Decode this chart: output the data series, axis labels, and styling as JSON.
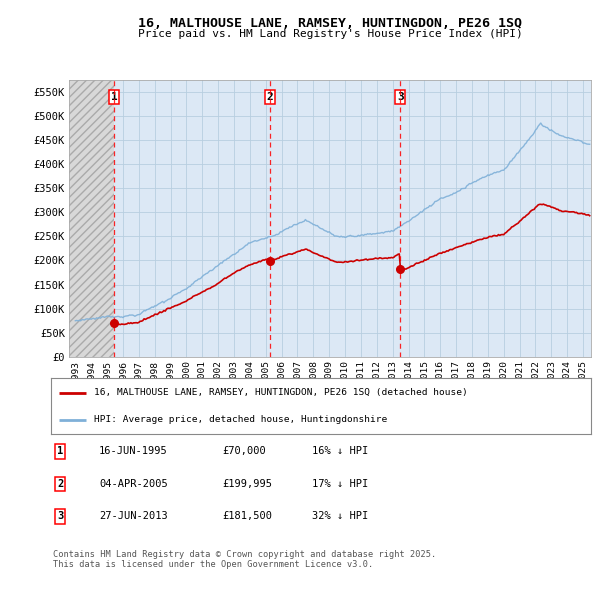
{
  "title": "16, MALTHOUSE LANE, RAMSEY, HUNTINGDON, PE26 1SQ",
  "subtitle": "Price paid vs. HM Land Registry's House Price Index (HPI)",
  "ylim": [
    0,
    575000
  ],
  "yticks": [
    0,
    50000,
    100000,
    150000,
    200000,
    250000,
    300000,
    350000,
    400000,
    450000,
    500000,
    550000
  ],
  "ytick_labels": [
    "£0",
    "£50K",
    "£100K",
    "£150K",
    "£200K",
    "£250K",
    "£300K",
    "£350K",
    "£400K",
    "£450K",
    "£500K",
    "£550K"
  ],
  "xlim_start": 1992.6,
  "xlim_end": 2025.5,
  "background_color": "#dce8f5",
  "hatch_color": "#d0d0d0",
  "grid_color": "#b8cee0",
  "red_line_color": "#cc0000",
  "blue_line_color": "#7fb0d8",
  "purchase_dates_year": [
    1995.46,
    2005.25,
    2013.49
  ],
  "purchase_prices": [
    70000,
    199995,
    181500
  ],
  "purchase_labels": [
    "1",
    "2",
    "3"
  ],
  "hpi_line_label": "HPI: Average price, detached house, Huntingdonshire",
  "price_line_label": "16, MALTHOUSE LANE, RAMSEY, HUNTINGDON, PE26 1SQ (detached house)",
  "table_rows": [
    [
      "1",
      "16-JUN-1995",
      "£70,000",
      "16% ↓ HPI"
    ],
    [
      "2",
      "04-APR-2005",
      "£199,995",
      "17% ↓ HPI"
    ],
    [
      "3",
      "27-JUN-2013",
      "£181,500",
      "32% ↓ HPI"
    ]
  ],
  "footer": "Contains HM Land Registry data © Crown copyright and database right 2025.\nThis data is licensed under the Open Government Licence v3.0.",
  "hatch_end_year": 1995.46
}
